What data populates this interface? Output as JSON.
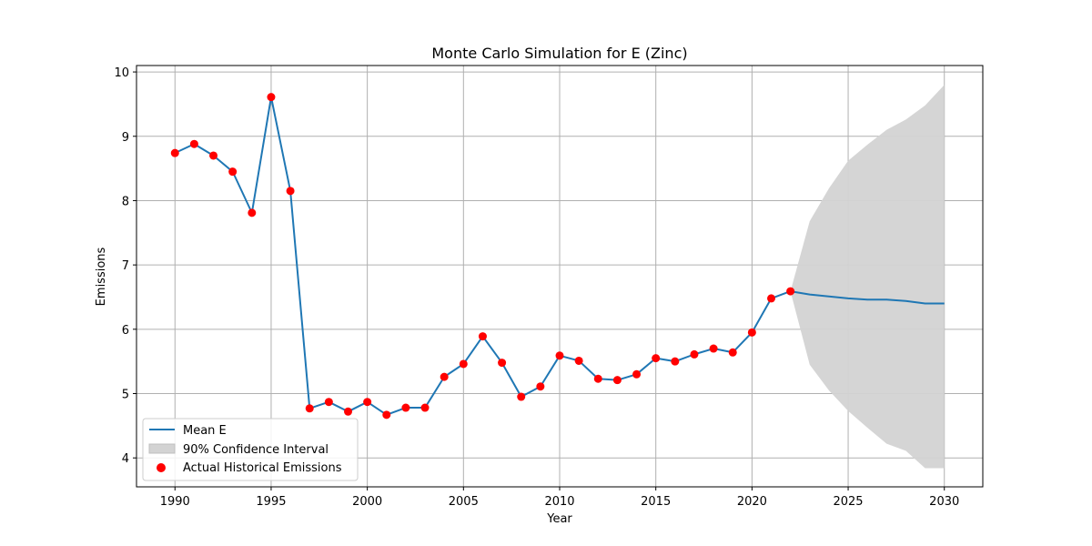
{
  "chart_data": {
    "type": "line",
    "title": "Monte Carlo Simulation for E (Zinc)",
    "xlabel": "Year",
    "ylabel": "Emissions",
    "xlim": [
      1988.0,
      2032.0
    ],
    "ylim": [
      3.55,
      10.1
    ],
    "xticks": [
      1990,
      1995,
      2000,
      2005,
      2010,
      2015,
      2020,
      2025,
      2030
    ],
    "yticks": [
      4,
      5,
      6,
      7,
      8,
      9,
      10
    ],
    "grid": true,
    "legend_position": "lower-left",
    "colors": {
      "mean_line": "#1f77b4",
      "confidence_fill": "#d3d3d3",
      "actual_points": "#ff0000"
    },
    "series": [
      {
        "name": "Mean E",
        "kind": "line",
        "x": [
          1990,
          1991,
          1992,
          1993,
          1994,
          1995,
          1996,
          1997,
          1998,
          1999,
          2000,
          2001,
          2002,
          2003,
          2004,
          2005,
          2006,
          2007,
          2008,
          2009,
          2010,
          2011,
          2012,
          2013,
          2014,
          2015,
          2016,
          2017,
          2018,
          2019,
          2020,
          2021,
          2022,
          2023,
          2024,
          2025,
          2026,
          2027,
          2028,
          2029,
          2030
        ],
        "y": [
          8.74,
          8.88,
          8.7,
          8.45,
          7.81,
          9.61,
          8.15,
          4.77,
          4.87,
          4.72,
          4.87,
          4.67,
          4.78,
          4.78,
          5.26,
          5.46,
          5.89,
          5.48,
          4.95,
          5.11,
          5.59,
          5.51,
          5.23,
          5.21,
          5.3,
          5.55,
          5.5,
          5.61,
          5.7,
          5.64,
          5.95,
          6.48,
          6.59,
          6.54,
          6.51,
          6.48,
          6.46,
          6.46,
          6.44,
          6.4,
          6.4
        ]
      },
      {
        "name": "90% Confidence Interval",
        "kind": "band",
        "x": [
          2022,
          2023,
          2024,
          2025,
          2026,
          2027,
          2028,
          2029,
          2030
        ],
        "lower": [
          6.59,
          5.45,
          5.05,
          4.73,
          4.47,
          4.22,
          4.11,
          3.84,
          3.84
        ],
        "upper": [
          6.59,
          7.68,
          8.19,
          8.62,
          8.87,
          9.1,
          9.26,
          9.48,
          9.8
        ]
      },
      {
        "name": "Actual Historical Emissions",
        "kind": "scatter",
        "x": [
          1990,
          1991,
          1992,
          1993,
          1994,
          1995,
          1996,
          1997,
          1998,
          1999,
          2000,
          2001,
          2002,
          2003,
          2004,
          2005,
          2006,
          2007,
          2008,
          2009,
          2010,
          2011,
          2012,
          2013,
          2014,
          2015,
          2016,
          2017,
          2018,
          2019,
          2020,
          2021,
          2022
        ],
        "y": [
          8.74,
          8.88,
          8.7,
          8.45,
          7.81,
          9.61,
          8.15,
          4.77,
          4.87,
          4.72,
          4.87,
          4.67,
          4.78,
          4.78,
          5.26,
          5.46,
          5.89,
          5.48,
          4.95,
          5.11,
          5.59,
          5.51,
          5.23,
          5.21,
          5.3,
          5.55,
          5.5,
          5.61,
          5.7,
          5.64,
          5.95,
          6.48,
          6.59
        ]
      }
    ],
    "legend": [
      {
        "label": "Mean E",
        "symbol": "line"
      },
      {
        "label": "90% Confidence Interval",
        "symbol": "patch"
      },
      {
        "label": "Actual Historical Emissions",
        "symbol": "dot"
      }
    ]
  }
}
